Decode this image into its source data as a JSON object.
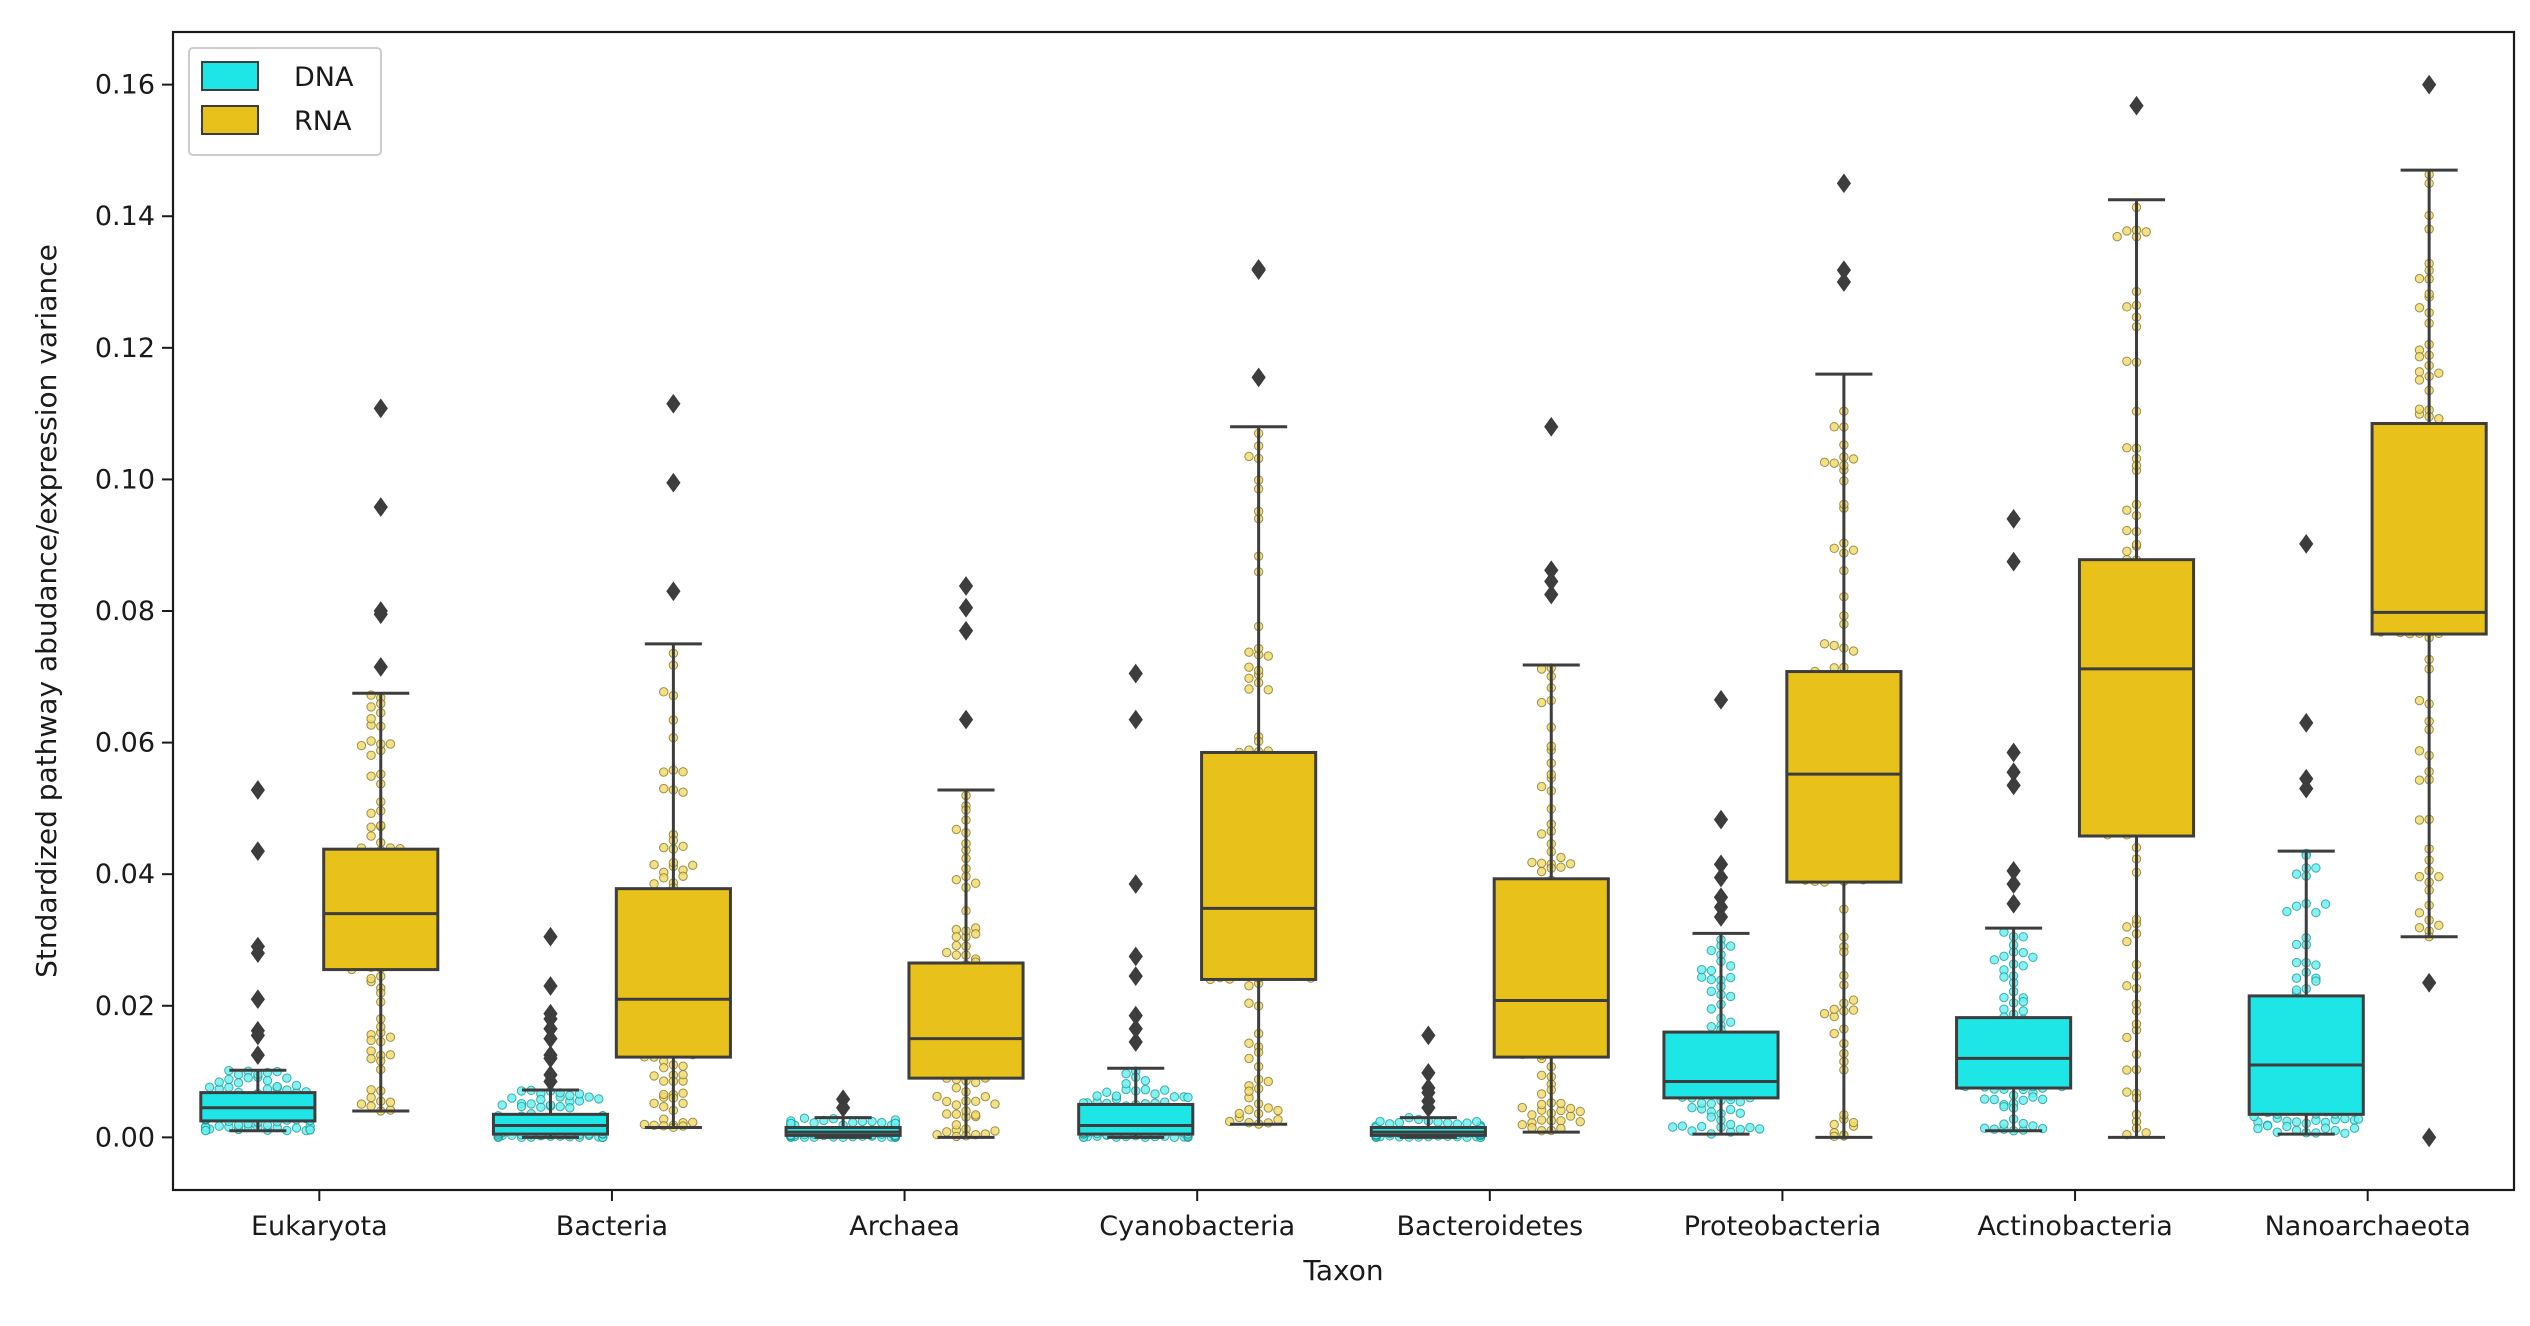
{
  "chart_data": {
    "type": "box",
    "xlabel": "Taxon",
    "ylabel": "Stndardized pathway abudance/expression variance",
    "ylim": [
      -0.008,
      0.168
    ],
    "yticks": [
      0.0,
      0.02,
      0.04,
      0.06,
      0.08,
      0.1,
      0.12,
      0.14,
      0.16
    ],
    "ytick_labels": [
      "0.00",
      "0.02",
      "0.04",
      "0.06",
      "0.08",
      "0.10",
      "0.12",
      "0.14",
      "0.16"
    ],
    "categories": [
      "Eukaryota",
      "Bacteria",
      "Archaea",
      "Cyanobacteria",
      "Bacteroidetes",
      "Proteobacteria",
      "Actinobacteria",
      "Nanoarchaeota"
    ],
    "legend": {
      "position": "top-left",
      "entries": [
        "DNA",
        "RNA"
      ]
    },
    "grid": false,
    "series": [
      {
        "name": "DNA",
        "color": "#1ee6e6",
        "boxes": [
          {
            "whisker_low": 0.001,
            "q1": 0.0025,
            "median": 0.0045,
            "q3": 0.0068,
            "whisker_high": 0.0102,
            "outliers": [
              0.0125,
              0.0155,
              0.0162,
              0.021,
              0.028,
              0.029,
              0.0435,
              0.0528
            ]
          },
          {
            "whisker_low": 0.0,
            "q1": 0.0005,
            "median": 0.0018,
            "q3": 0.0035,
            "whisker_high": 0.0072,
            "outliers": [
              0.0085,
              0.0095,
              0.012,
              0.0125,
              0.015,
              0.0165,
              0.018,
              0.0188,
              0.023,
              0.0305
            ]
          },
          {
            "whisker_low": 0.0,
            "q1": 0.0003,
            "median": 0.0008,
            "q3": 0.0015,
            "whisker_high": 0.003,
            "outliers": [
              0.0045,
              0.0058
            ]
          },
          {
            "whisker_low": 0.0,
            "q1": 0.0005,
            "median": 0.0018,
            "q3": 0.005,
            "whisker_high": 0.0105,
            "outliers": [
              0.0145,
              0.0165,
              0.0185,
              0.0245,
              0.0275,
              0.0385,
              0.0635,
              0.0705
            ]
          },
          {
            "whisker_low": 0.0,
            "q1": 0.0003,
            "median": 0.0008,
            "q3": 0.0015,
            "whisker_high": 0.003,
            "outliers": [
              0.0045,
              0.0055,
              0.0068,
              0.0075,
              0.0098,
              0.0155
            ]
          },
          {
            "whisker_low": 0.0005,
            "q1": 0.006,
            "median": 0.0085,
            "q3": 0.016,
            "whisker_high": 0.031,
            "outliers": [
              0.0335,
              0.035,
              0.0365,
              0.0395,
              0.0415,
              0.0483,
              0.0665
            ]
          },
          {
            "whisker_low": 0.001,
            "q1": 0.0075,
            "median": 0.012,
            "q3": 0.0182,
            "whisker_high": 0.0318,
            "outliers": [
              0.0355,
              0.0385,
              0.0405,
              0.0535,
              0.0555,
              0.0585,
              0.0875,
              0.094
            ]
          },
          {
            "whisker_low": 0.0005,
            "q1": 0.0035,
            "median": 0.011,
            "q3": 0.0215,
            "whisker_high": 0.0435,
            "outliers": [
              0.053,
              0.0545,
              0.063,
              0.0902
            ]
          }
        ]
      },
      {
        "name": "RNA",
        "color": "#e8c21a",
        "boxes": [
          {
            "whisker_low": 0.004,
            "q1": 0.0255,
            "median": 0.034,
            "q3": 0.0438,
            "whisker_high": 0.0675,
            "outliers": [
              0.0715,
              0.0795,
              0.08,
              0.0958,
              0.1108
            ]
          },
          {
            "whisker_low": 0.0015,
            "q1": 0.0122,
            "median": 0.021,
            "q3": 0.0378,
            "whisker_high": 0.075,
            "outliers": [
              0.083,
              0.0995,
              0.1115
            ]
          },
          {
            "whisker_low": 0.0,
            "q1": 0.009,
            "median": 0.015,
            "q3": 0.0265,
            "whisker_high": 0.0528,
            "outliers": [
              0.0635,
              0.077,
              0.0805,
              0.0838
            ]
          },
          {
            "whisker_low": 0.002,
            "q1": 0.024,
            "median": 0.0348,
            "q3": 0.0585,
            "whisker_high": 0.108,
            "outliers": [
              0.1155,
              0.1318,
              0.132
            ]
          },
          {
            "whisker_low": 0.0008,
            "q1": 0.0122,
            "median": 0.0208,
            "q3": 0.0393,
            "whisker_high": 0.0718,
            "outliers": [
              0.0825,
              0.0845,
              0.0862,
              0.108
            ]
          },
          {
            "whisker_low": 0.0,
            "q1": 0.0388,
            "median": 0.0552,
            "q3": 0.0708,
            "whisker_high": 0.116,
            "outliers": [
              0.13,
              0.1318,
              0.145
            ]
          },
          {
            "whisker_low": 0.0,
            "q1": 0.0458,
            "median": 0.0712,
            "q3": 0.0878,
            "whisker_high": 0.1425,
            "outliers": [
              0.1568
            ]
          },
          {
            "whisker_low": 0.0305,
            "q1": 0.0765,
            "median": 0.0798,
            "q3": 0.1085,
            "whisker_high": 0.147,
            "outliers": [
              0.0,
              0.0235,
              0.16
            ]
          }
        ]
      }
    ]
  }
}
